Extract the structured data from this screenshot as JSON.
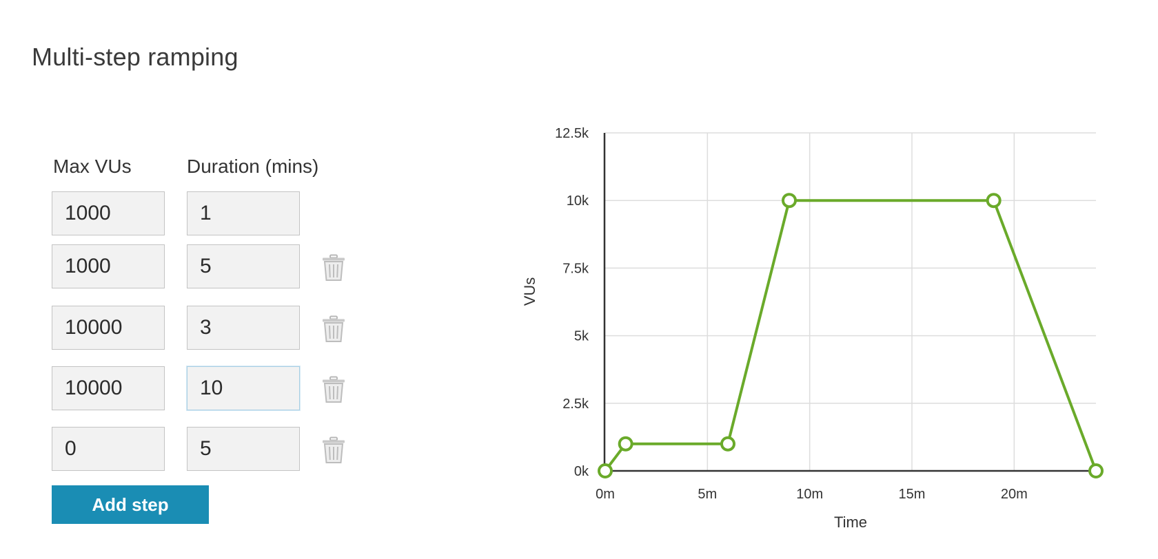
{
  "page": {
    "title": "Multi-step ramping"
  },
  "form": {
    "headers": {
      "max_vus": "Max VUs",
      "duration": "Duration (mins)"
    },
    "steps": [
      {
        "max_vus": "1000",
        "duration": "1",
        "deletable": false
      },
      {
        "max_vus": "1000",
        "duration": "5",
        "deletable": true
      },
      {
        "max_vus": "10000",
        "duration": "3",
        "deletable": true
      },
      {
        "max_vus": "10000",
        "duration": "10",
        "deletable": true,
        "focused_field": "duration"
      },
      {
        "max_vus": "0",
        "duration": "5",
        "deletable": true
      }
    ],
    "delete_icon": "trash-icon",
    "add_step_label": "Add step"
  },
  "colors": {
    "accent_button": "#1a8db4",
    "series_line": "#6aaa2a",
    "grid": "#dddddd",
    "axis": "#333333"
  },
  "chart_data": {
    "type": "line",
    "title": "",
    "xlabel": "Time",
    "ylabel": "VUs",
    "x_unit": "minutes",
    "xlim": [
      0,
      24
    ],
    "ylim": [
      0,
      12500
    ],
    "x_ticks": [
      0,
      5,
      10,
      15,
      20
    ],
    "x_tick_labels": [
      "0m",
      "5m",
      "10m",
      "15m",
      "20m"
    ],
    "y_ticks": [
      0,
      2500,
      5000,
      7500,
      10000,
      12500
    ],
    "y_tick_labels": [
      "0k",
      "2.5k",
      "5k",
      "7.5k",
      "10k",
      "12.5k"
    ],
    "grid": true,
    "series": [
      {
        "x": [
          0,
          1,
          6,
          9,
          19,
          24
        ],
        "y": [
          0,
          1000,
          1000,
          10000,
          10000,
          0
        ]
      }
    ]
  }
}
